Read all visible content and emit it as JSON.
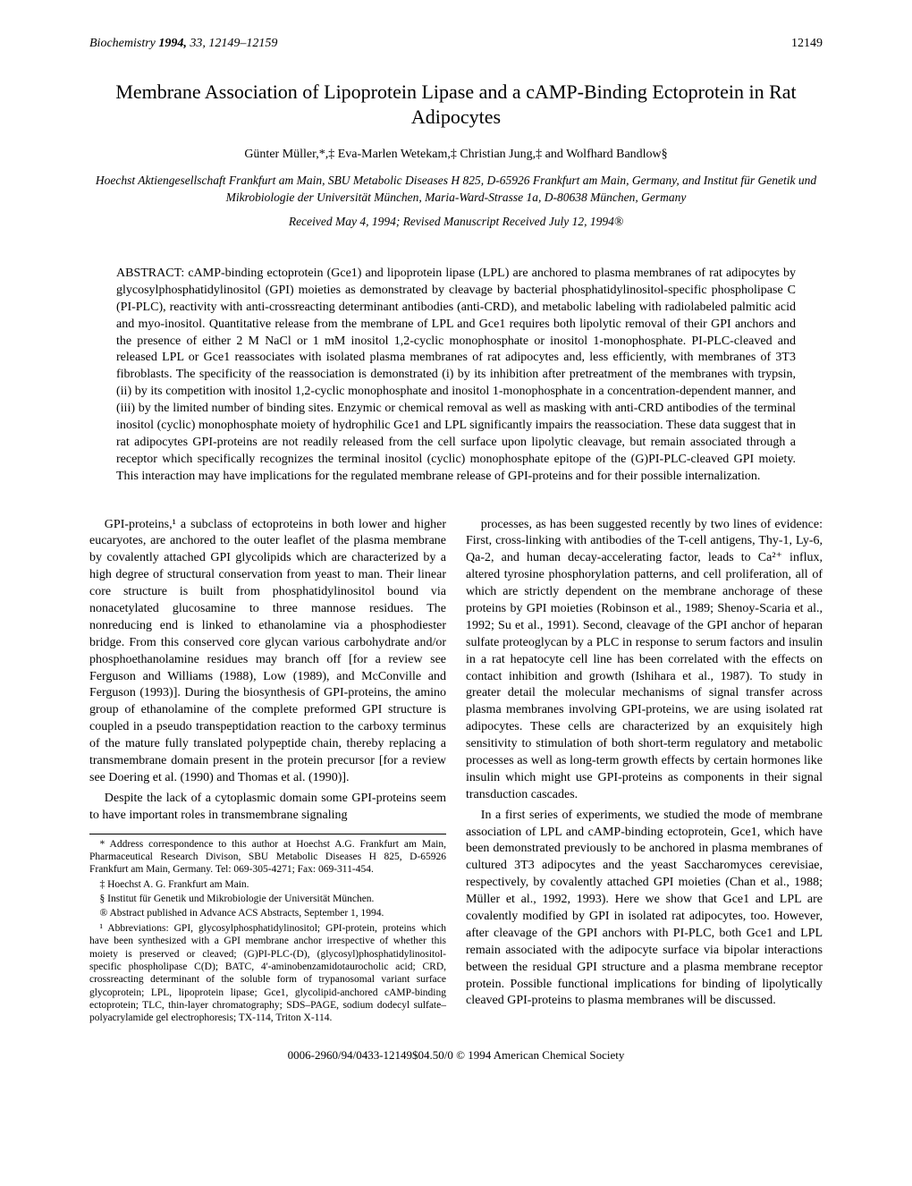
{
  "header": {
    "journal": "Biochemistry",
    "year": "1994,",
    "vol_pages": "33, 12149–12159",
    "page_no": "12149"
  },
  "title": "Membrane Association of Lipoprotein Lipase and a cAMP-Binding Ectoprotein in Rat Adipocytes",
  "authors": "Günter Müller,*,‡ Eva-Marlen Wetekam,‡ Christian Jung,‡ and Wolfhard Bandlow§",
  "affiliations": "Hoechst Aktiengesellschaft Frankfurt am Main, SBU Metabolic Diseases H 825, D-65926 Frankfurt am Main, Germany, and Institut für Genetik und Mikrobiologie der Universität München, Maria-Ward-Strasse 1a, D-80638 München, Germany",
  "received": "Received May 4, 1994; Revised Manuscript Received July 12, 1994®",
  "abstract": "cAMP-binding ectoprotein (Gce1) and lipoprotein lipase (LPL) are anchored to plasma membranes of rat adipocytes by glycosylphosphatidylinositol (GPI) moieties as demonstrated by cleavage by bacterial phosphatidylinositol-specific phospholipase C (PI-PLC), reactivity with anti-crossreacting determinant antibodies (anti-CRD), and metabolic labeling with radiolabeled palmitic acid and myo-inositol. Quantitative release from the membrane of LPL and Gce1 requires both lipolytic removal of their GPI anchors and the presence of either 2 M NaCl or 1 mM inositol 1,2-cyclic monophosphate or inositol 1-monophosphate. PI-PLC-cleaved and released LPL or Gce1 reassociates with isolated plasma membranes of rat adipocytes and, less efficiently, with membranes of 3T3 fibroblasts. The specificity of the reassociation is demonstrated (i) by its inhibition after pretreatment of the membranes with trypsin, (ii) by its competition with inositol 1,2-cyclic monophosphate and inositol 1-monophosphate in a concentration-dependent manner, and (iii) by the limited number of binding sites. Enzymic or chemical removal as well as masking with anti-CRD antibodies of the terminal inositol (cyclic) monophosphate moiety of hydrophilic Gce1 and LPL significantly impairs the reassociation. These data suggest that in rat adipocytes GPI-proteins are not readily released from the cell surface upon lipolytic cleavage, but remain associated through a receptor which specifically recognizes the terminal inositol (cyclic) monophosphate epitope of the (G)PI-PLC-cleaved GPI moiety. This interaction may have implications for the regulated membrane release of GPI-proteins and for their possible internalization.",
  "body": {
    "p1": "GPI-proteins,¹ a subclass of ectoproteins in both lower and higher eucaryotes, are anchored to the outer leaflet of the plasma membrane by covalently attached GPI glycolipids which are characterized by a high degree of structural conservation from yeast to man. Their linear core structure is built from phosphatidylinositol bound via nonacetylated glucosamine to three mannose residues. The nonreducing end is linked to ethanolamine via a phosphodiester bridge. From this conserved core glycan various carbohydrate and/or phosphoethanolamine residues may branch off [for a review see Ferguson and Williams (1988), Low (1989), and McConville and Ferguson (1993)]. During the biosynthesis of GPI-proteins, the amino group of ethanolamine of the complete preformed GPI structure is coupled in a pseudo transpeptidation reaction to the carboxy terminus of the mature fully translated polypeptide chain, thereby replacing a transmembrane domain present in the protein precursor [for a review see Doering et al. (1990) and Thomas et al. (1990)].",
    "p2": "Despite the lack of a cytoplasmic domain some GPI-proteins seem to have important roles in transmembrane signaling",
    "p3": "processes, as has been suggested recently by two lines of evidence: First, cross-linking with antibodies of the T-cell antigens, Thy-1, Ly-6, Qa-2, and human decay-accelerating factor, leads to Ca²⁺ influx, altered tyrosine phosphorylation patterns, and cell proliferation, all of which are strictly dependent on the membrane anchorage of these proteins by GPI moieties (Robinson et al., 1989; Shenoy-Scaria et al., 1992; Su et al., 1991). Second, cleavage of the GPI anchor of heparan sulfate proteoglycan by a PLC in response to serum factors and insulin in a rat hepatocyte cell line has been correlated with the effects on contact inhibition and growth (Ishihara et al., 1987). To study in greater detail the molecular mechanisms of signal transfer across plasma membranes involving GPI-proteins, we are using isolated rat adipocytes. These cells are characterized by an exquisitely high sensitivity to stimulation of both short-term regulatory and metabolic processes as well as long-term growth effects by certain hormones like insulin which might use GPI-proteins as components in their signal transduction cascades.",
    "p4": "In a first series of experiments, we studied the mode of membrane association of LPL and cAMP-binding ectoprotein, Gce1, which have been demonstrated previously to be anchored in plasma membranes of cultured 3T3 adipocytes and the yeast Saccharomyces cerevisiae, respectively, by covalently attached GPI moieties (Chan et al., 1988; Müller et al., 1992, 1993). Here we show that Gce1 and LPL are covalently modified by GPI in isolated rat adipocytes, too. However, after cleavage of the GPI anchors with PI-PLC, both Gce1 and LPL remain associated with the adipocyte surface via bipolar interactions between the residual GPI structure and a plasma membrane receptor protein. Possible functional implications for binding of lipolytically cleaved GPI-proteins to plasma membranes will be discussed."
  },
  "footnotes": {
    "f1": "* Address correspondence to this author at Hoechst A.G. Frankfurt am Main, Pharmaceutical Research Divison, SBU Metabolic Diseases H 825, D-65926 Frankfurt am Main, Germany. Tel: 069-305-4271; Fax: 069-311-454.",
    "f2": "‡ Hoechst A. G. Frankfurt am Main.",
    "f3": "§ Institut für Genetik und Mikrobiologie der Universität München.",
    "f4": "® Abstract published in Advance ACS Abstracts, September 1, 1994.",
    "f5": "¹ Abbreviations: GPI, glycosylphosphatidylinositol; GPI-protein, proteins which have been synthesized with a GPI membrane anchor irrespective of whether this moiety is preserved or cleaved; (G)PI-PLC-(D), (glycosyl)phosphatidylinositol-specific phospholipase C(D); BATC, 4'-aminobenzamidotaurocholic acid; CRD, crossreacting determinant of the soluble form of trypanosomal variant surface glycoprotein; LPL, lipoprotein lipase; Gce1, glycolipid-anchored cAMP-binding ectoprotein; TLC, thin-layer chromatography; SDS–PAGE, sodium dodecyl sulfate–polyacrylamide gel electrophoresis; TX-114, Triton X-114."
  },
  "copyright": "0006-2960/94/0433-12149$04.50/0   © 1994 American Chemical Society"
}
